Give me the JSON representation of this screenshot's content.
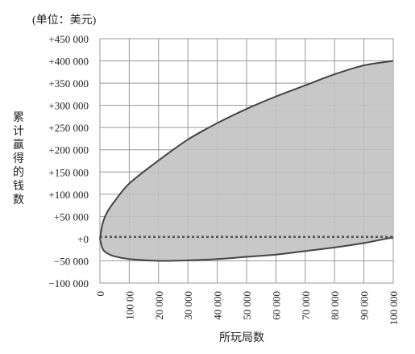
{
  "chart_data": {
    "type": "area",
    "unit_label": "(单位：美元)",
    "xlabel": "所玩局数",
    "ylabel": "累计赢得的钱数",
    "xlim": [
      0,
      100000
    ],
    "ylim": [
      -100000,
      450000
    ],
    "x_ticks": [
      0,
      10000,
      20000,
      30000,
      40000,
      50000,
      60000,
      70000,
      80000,
      90000,
      100000
    ],
    "x_tick_labels": [
      "0",
      "100 00",
      "20 000",
      "30 000",
      "40 000",
      "50 000",
      "60 000",
      "70 000",
      "80 000",
      "90 000",
      "100 000"
    ],
    "y_ticks": [
      450000,
      400000,
      350000,
      300000,
      250000,
      200000,
      150000,
      100000,
      50000,
      0,
      -50000,
      -100000
    ],
    "y_tick_labels": [
      "+450 000",
      "+400 000",
      "+350 000",
      "+300 000",
      "+250 000",
      "+200 000",
      "+150 000",
      "+100 000",
      "+50 000",
      "+0",
      "−50 000",
      "−100 000"
    ],
    "grid": true,
    "series": [
      {
        "x": [
          0,
          1000,
          2500,
          5000,
          10000,
          20000,
          30000,
          40000,
          50000,
          60000,
          70000,
          80000,
          90000,
          100000
        ],
        "y": [
          0,
          36000,
          60000,
          84000,
          124000,
          176000,
          223000,
          260000,
          292000,
          320000,
          345000,
          370000,
          390000,
          400000
        ]
      },
      {
        "x": [
          0,
          1000,
          2500,
          5000,
          10000,
          20000,
          30000,
          40000,
          50000,
          60000,
          70000,
          80000,
          90000,
          100000
        ],
        "y": [
          0,
          -24000,
          -33000,
          -40000,
          -46000,
          -50000,
          -49000,
          -46000,
          -41000,
          -36000,
          -28000,
          -20000,
          -10000,
          3000
        ]
      },
      {
        "x": [
          0,
          100000
        ],
        "y": [
          4000,
          4000
        ]
      }
    ],
    "colors": {
      "fill": "#c8c8c8",
      "line": "#444444",
      "dotted": "#555555",
      "grid": "#999999"
    }
  }
}
